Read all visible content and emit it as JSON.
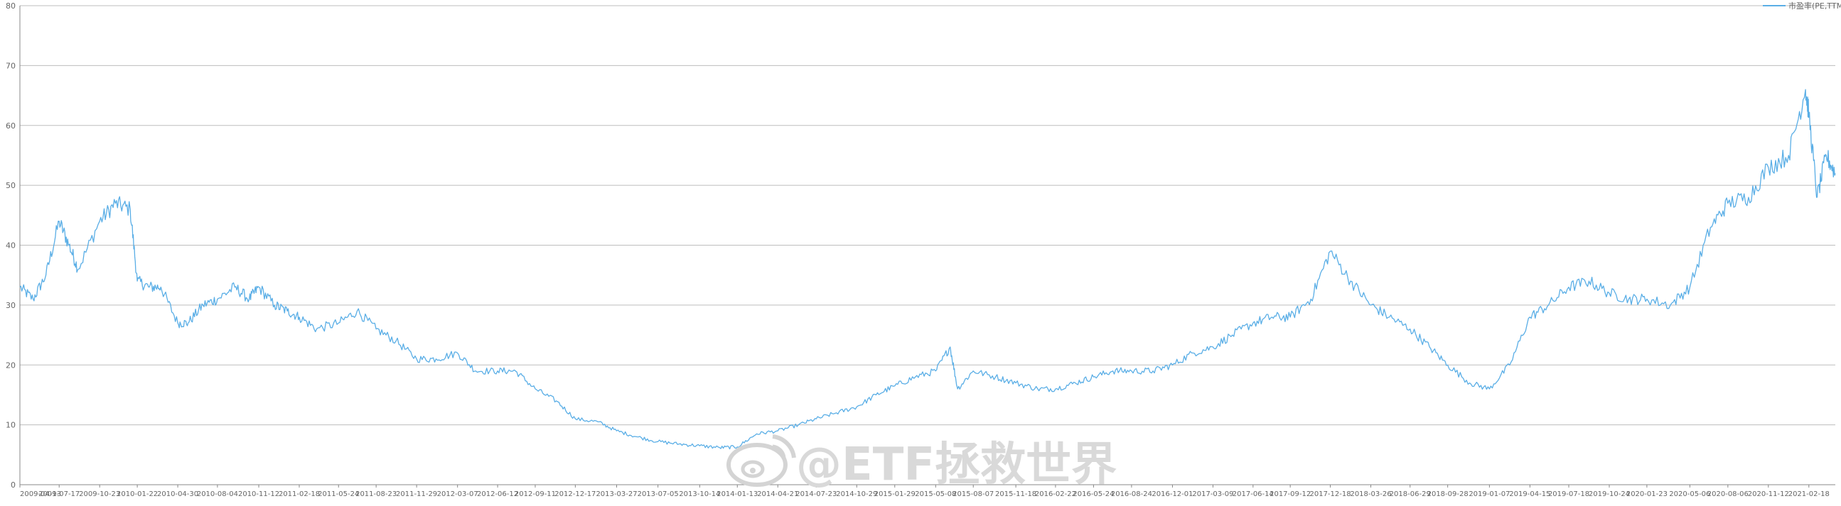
{
  "chart_data": {
    "type": "line",
    "title": "",
    "xlabel": "",
    "ylabel": "",
    "ylim": [
      0,
      80
    ],
    "yticks": [
      0,
      10,
      20,
      30,
      40,
      50,
      60,
      70,
      80
    ],
    "grid": true,
    "legend_position": "top-right",
    "x_tick_labels": [
      "2009-04-13",
      "2009-07-17",
      "2009-10-23",
      "2010-01-22",
      "2010-04-30",
      "2010-08-04",
      "2010-11-12",
      "2011-02-18",
      "2011-05-24",
      "2011-08-23",
      "2011-11-29",
      "2012-03-07",
      "2012-06-12",
      "2012-09-11",
      "2012-12-17",
      "2013-03-27",
      "2013-07-05",
      "2013-10-14",
      "2014-01-13",
      "2014-04-21",
      "2014-07-23",
      "2014-10-29",
      "2015-01-29",
      "2015-05-08",
      "2015-08-07",
      "2015-11-18",
      "2016-02-22",
      "2016-05-24",
      "2016-08-24",
      "2016-12-01",
      "2017-03-09",
      "2017-06-14",
      "2017-09-12",
      "2017-12-18",
      "2018-03-26",
      "2018-06-29",
      "2018-09-28",
      "2019-01-07",
      "2019-04-15",
      "2019-07-18",
      "2019-10-24",
      "2020-01-23",
      "2020-05-06",
      "2020-08-06",
      "2020-11-12",
      "2021-02-18"
    ],
    "series": [
      {
        "name": "市盈率(PE,TTM)",
        "color": "#5aaee6",
        "x": [
          "2009-04-13",
          "2009-05-15",
          "2009-06-15",
          "2009-07-17",
          "2009-08-10",
          "2009-09-01",
          "2009-10-23",
          "2009-11-30",
          "2010-01-05",
          "2010-01-22",
          "2010-02-20",
          "2010-03-20",
          "2010-04-30",
          "2010-05-25",
          "2010-06-30",
          "2010-08-04",
          "2010-09-15",
          "2010-10-20",
          "2010-11-12",
          "2010-12-20",
          "2011-01-20",
          "2011-02-18",
          "2011-04-01",
          "2011-05-24",
          "2011-07-08",
          "2011-08-23",
          "2011-10-10",
          "2011-11-29",
          "2012-01-15",
          "2012-03-07",
          "2012-04-20",
          "2012-06-12",
          "2012-07-25",
          "2012-09-11",
          "2012-11-01",
          "2012-12-17",
          "2013-02-10",
          "2013-03-27",
          "2013-05-15",
          "2013-07-05",
          "2013-08-25",
          "2013-10-14",
          "2013-12-01",
          "2014-01-13",
          "2014-03-01",
          "2014-04-21",
          "2014-06-10",
          "2014-07-23",
          "2014-09-10",
          "2014-10-29",
          "2014-12-15",
          "2015-01-29",
          "2015-03-20",
          "2015-05-08",
          "2015-06-12",
          "2015-06-30",
          "2015-08-07",
          "2015-09-30",
          "2015-11-18",
          "2016-01-10",
          "2016-02-22",
          "2016-04-10",
          "2016-05-24",
          "2016-07-10",
          "2016-08-24",
          "2016-10-15",
          "2016-12-01",
          "2017-01-20",
          "2017-03-09",
          "2017-04-25",
          "2017-06-14",
          "2017-07-30",
          "2017-09-12",
          "2017-11-01",
          "2017-12-18",
          "2018-02-05",
          "2018-03-26",
          "2018-05-10",
          "2018-06-29",
          "2018-08-15",
          "2018-09-28",
          "2018-11-20",
          "2019-01-07",
          "2019-02-25",
          "2019-04-15",
          "2019-05-30",
          "2019-07-18",
          "2019-09-05",
          "2019-10-24",
          "2019-12-10",
          "2020-01-23",
          "2020-03-20",
          "2020-05-06",
          "2020-06-25",
          "2020-08-06",
          "2020-09-25",
          "2020-11-12",
          "2020-12-31",
          "2021-02-10",
          "2021-02-18",
          "2021-03-10",
          "2021-04-01",
          "2021-04-23"
        ],
        "values": [
          33,
          31,
          35,
          44,
          40,
          36,
          44,
          47,
          46,
          34,
          33,
          33,
          27,
          27,
          30,
          31,
          33,
          31,
          33,
          30,
          29,
          28,
          26,
          27,
          29,
          26,
          24,
          21,
          21,
          22,
          19,
          19,
          19,
          16,
          14,
          11,
          10.5,
          9,
          8,
          7.2,
          6.8,
          6.5,
          6.2,
          6.3,
          8.5,
          9,
          10,
          11,
          12,
          13,
          15,
          16.5,
          18,
          19,
          23,
          16,
          19,
          18,
          17,
          16,
          16,
          17,
          18,
          19,
          19,
          19,
          20,
          22,
          23,
          25,
          27,
          28,
          28,
          31,
          39,
          34,
          30,
          28,
          26,
          23,
          20,
          17,
          16,
          20,
          28,
          30,
          33,
          34,
          32,
          31,
          31,
          30,
          33,
          43,
          47,
          48,
          53,
          55,
          66,
          62,
          48,
          55,
          52
        ]
      }
    ]
  },
  "watermark": "@ETF拯救世界"
}
